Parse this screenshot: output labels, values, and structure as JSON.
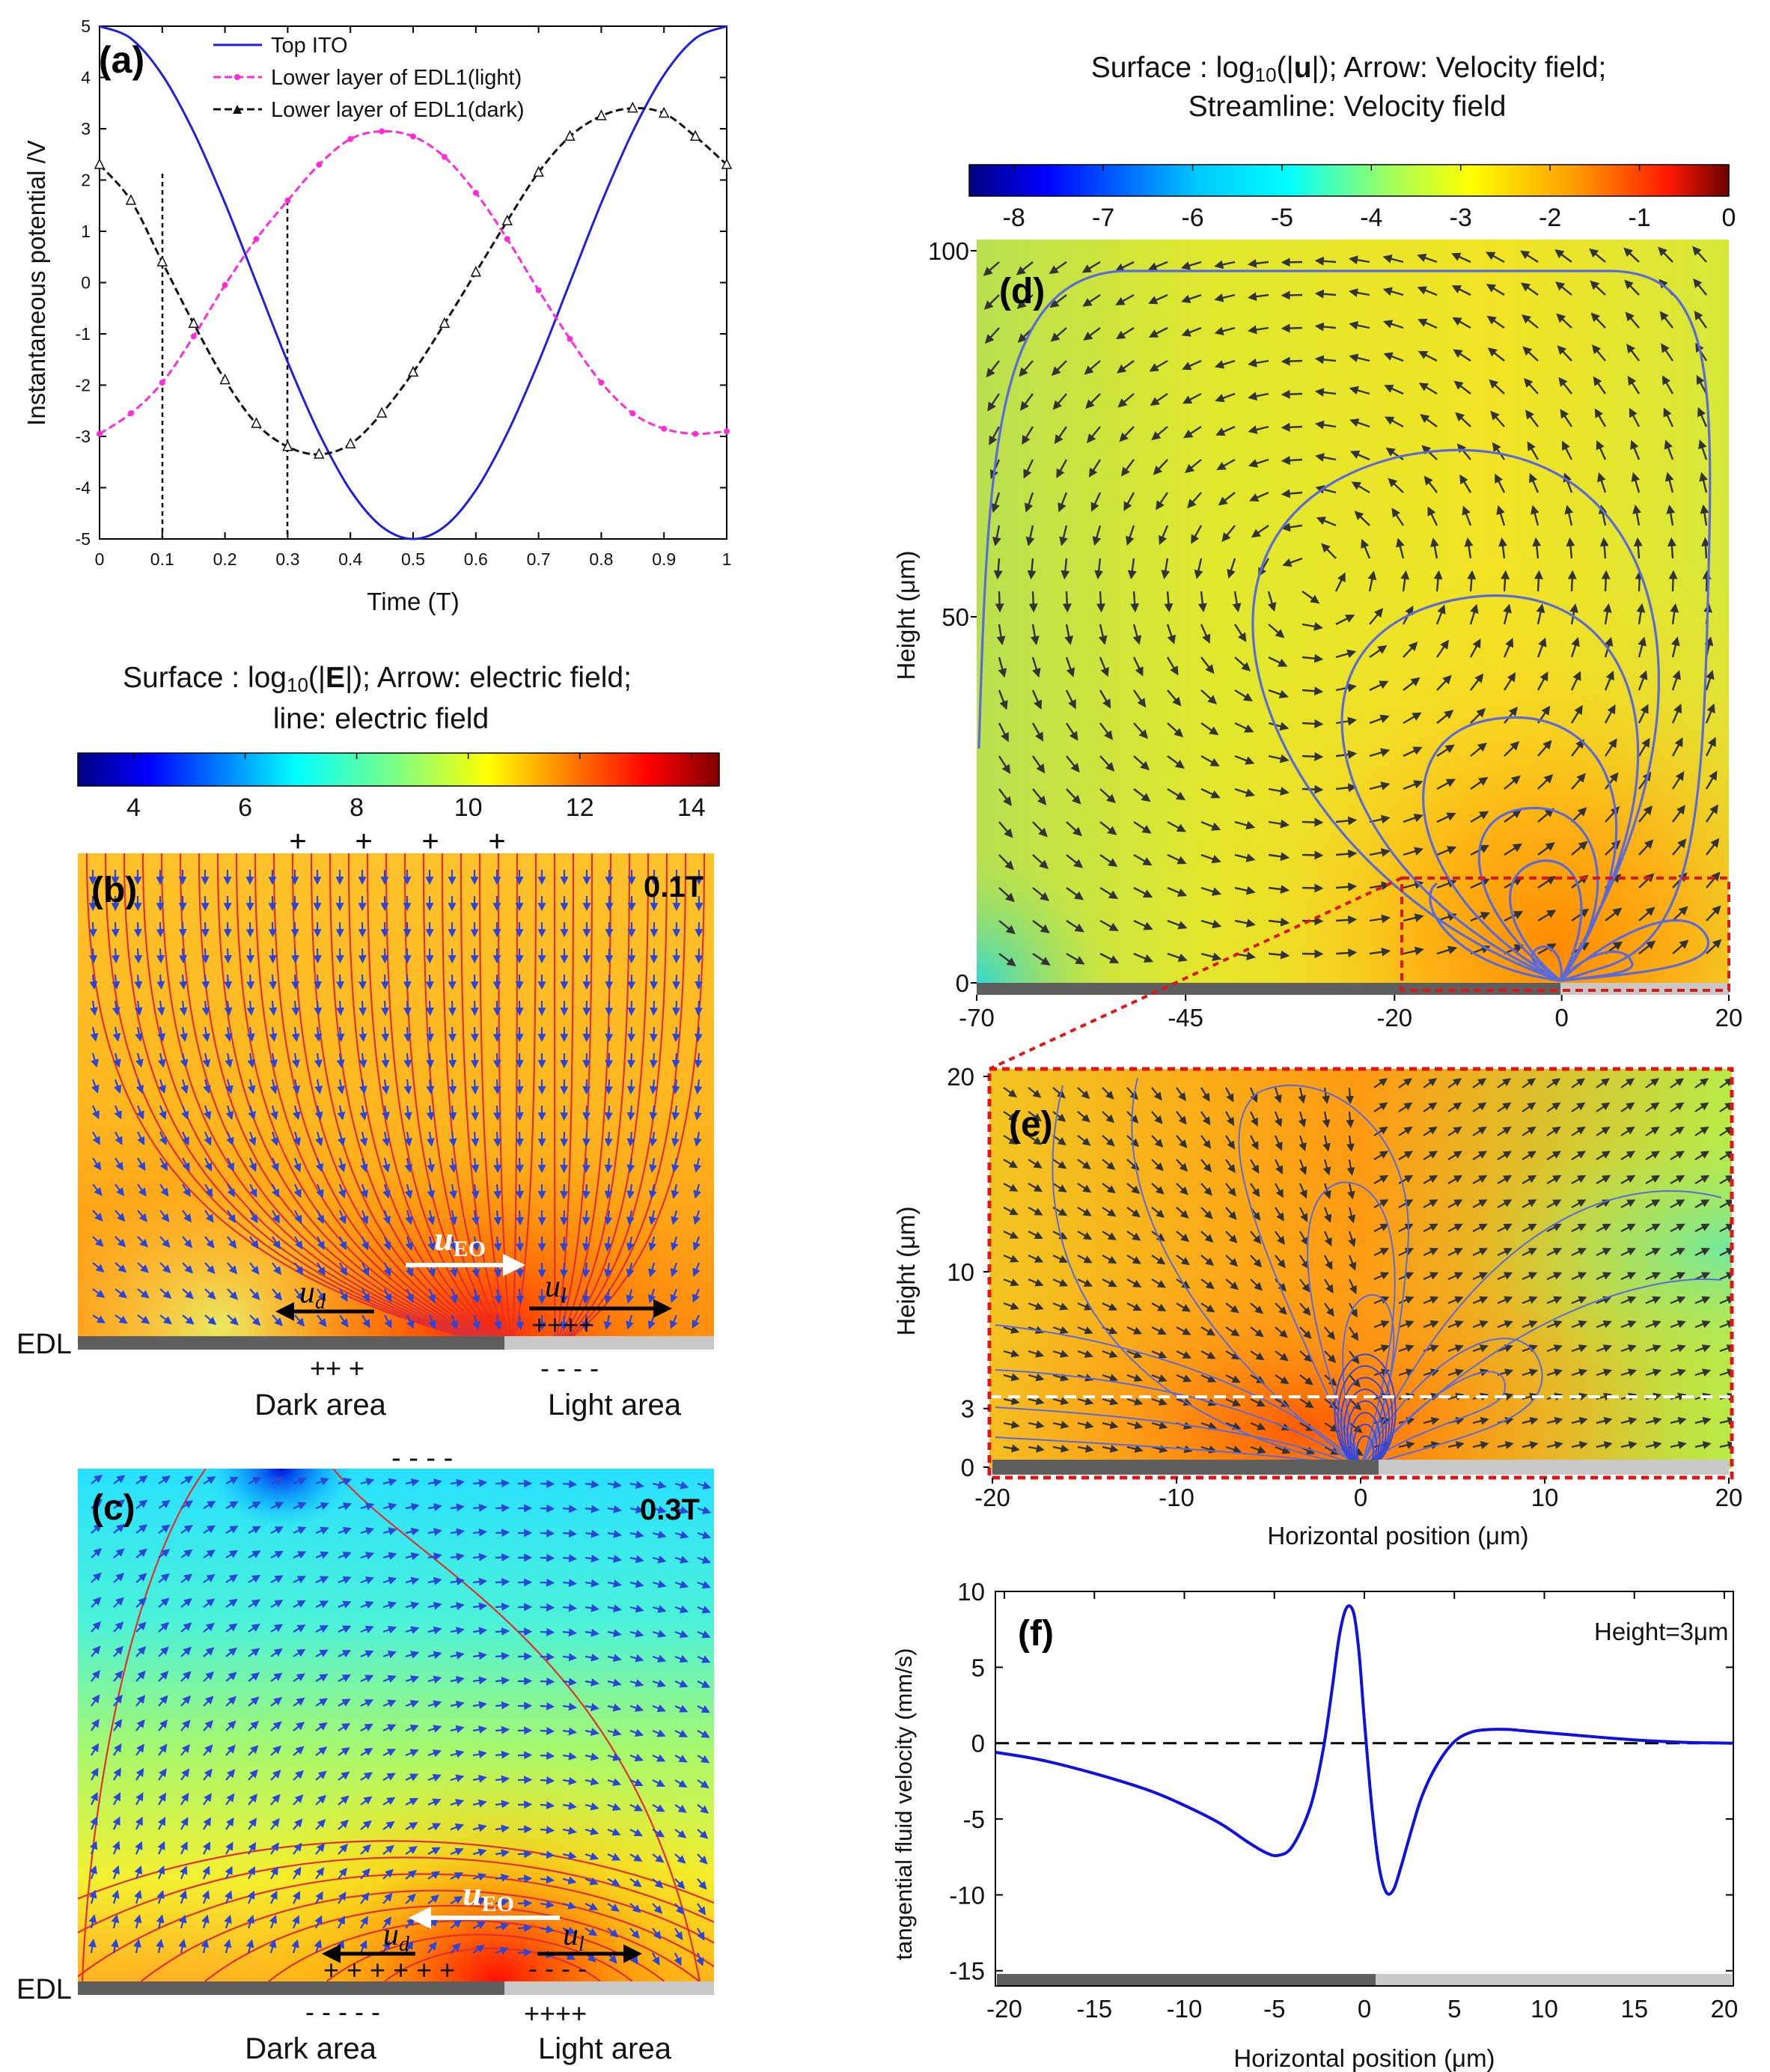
{
  "colors": {
    "top_ito": "#1f1fe0",
    "edl_light": "#ff2bd6",
    "edl_dark": "#111111",
    "field_line_red": "#e03030",
    "arrow_blue": "#2a45d8",
    "streamline": "#5a6ad8",
    "arrow_dark": "#333333",
    "dark_electrode": "#5e5e5e",
    "light_electrode": "#c8c8c8",
    "zoom_box": "#e01515",
    "velocity_curve": "#1010e0"
  },
  "panel_a": {
    "label": "(a)",
    "xlabel": "Time (T)",
    "ylabel": "Instantaneous potential /V",
    "x_ticks": [
      "0",
      "0.1",
      "0.2",
      "0.3",
      "0.4",
      "0.5",
      "0.6",
      "0.7",
      "0.8",
      "0.9",
      "1"
    ],
    "y_ticks": [
      "5",
      "4",
      "3",
      "2",
      "1",
      "0",
      "-1",
      "-2",
      "-3",
      "-4",
      "-5"
    ],
    "legend": [
      "Top ITO",
      "Lower layer of EDL1(light)",
      "Lower layer of EDL1(dark)"
    ]
  },
  "panel_b": {
    "label": "(b)",
    "title_line1_pre": "Surface : log",
    "title_sub": "10",
    "title_line1_open": "(|",
    "title_bold": "E",
    "title_line1_post": "|); Arrow: electric field;",
    "title_line2": "line: electric field",
    "cbar_ticks": [
      "4",
      "6",
      "8",
      "10",
      "12",
      "14"
    ],
    "time": "0.1T",
    "top_charges": [
      "+",
      "+",
      "+",
      "+"
    ],
    "u_eo": "u",
    "u_eo_sub": "EO",
    "u_d": "u",
    "u_d_sub": "d",
    "u_l": "u",
    "u_l_sub": "l",
    "light_surface_charges": "++++",
    "edl": "EDL",
    "dark_charges": "++ +",
    "light_charges": "- - - -",
    "dark_area": "Dark area",
    "light_area": "Light area"
  },
  "panel_c": {
    "label": "(c)",
    "time": "0.3T",
    "top_charges": "- - - -",
    "u_eo": "u",
    "u_eo_sub": "EO",
    "u_d": "u",
    "u_d_sub": "d",
    "u_l": "u",
    "u_l_sub": "l",
    "dark_surface_charges": "+ + + + + +",
    "light_surface_charges": "- - - -",
    "edl": "EDL",
    "dark_charges": "-   -   -   -   -",
    "light_charges": "++++",
    "dark_area": "Dark area",
    "light_area": "Light area"
  },
  "panel_d": {
    "label": "(d)",
    "title_line1_pre": "Surface : log",
    "title_sub": "10",
    "title_line1_open": "(|",
    "title_bold": "u",
    "title_line1_post": "|);  Arrow: Velocity field;",
    "title_line2": "Streamline: Velocity field",
    "cbar_ticks": [
      "-8",
      "-7",
      "-6",
      "-5",
      "-4",
      "-3",
      "-2",
      "-1",
      "0"
    ],
    "ylabel": "Height (μm)",
    "y_ticks": [
      "100",
      "50",
      "0"
    ],
    "x_ticks": [
      "-70",
      "-45",
      "-20",
      "0",
      "20"
    ]
  },
  "panel_e": {
    "label": "(e)",
    "ylabel": "Height (μm)",
    "xlabel": "Horizontal position (μm)",
    "y_ticks": [
      "20",
      "10",
      "3",
      "0"
    ],
    "x_ticks": [
      "-20",
      "-10",
      "0",
      "10",
      "20"
    ]
  },
  "panel_f": {
    "label": "(f)",
    "annotation": "Height=3μm",
    "ylabel": "tangential fluid velocity (mm/s)",
    "xlabel": "Horizontal position (μm)",
    "y_ticks": [
      "10",
      "5",
      "0",
      "-5",
      "-10",
      "-15"
    ],
    "x_ticks": [
      "-20",
      "-15",
      "-10",
      "-5",
      "0",
      "5",
      "10",
      "15",
      "20"
    ]
  },
  "chart_data": [
    {
      "type": "line",
      "panel": "a",
      "title": "",
      "xlabel": "Time (T)",
      "ylabel": "Instantaneous potential /V",
      "xlim": [
        0,
        1
      ],
      "ylim": [
        -5,
        5
      ],
      "reference_lines_x": [
        0.1,
        0.3
      ],
      "series": [
        {
          "name": "Top ITO",
          "x": [
            0,
            0.05,
            0.1,
            0.15,
            0.2,
            0.25,
            0.3,
            0.35,
            0.4,
            0.45,
            0.5,
            0.55,
            0.6,
            0.65,
            0.7,
            0.75,
            0.8,
            0.85,
            0.9,
            0.95,
            1
          ],
          "y": [
            5,
            4.76,
            4.05,
            2.94,
            1.55,
            0,
            -1.55,
            -2.94,
            -4.05,
            -4.76,
            -5,
            -4.76,
            -4.05,
            -2.94,
            -1.55,
            0,
            1.55,
            2.94,
            4.05,
            4.76,
            5
          ]
        },
        {
          "name": "Lower layer of EDL1(light)",
          "x": [
            0,
            0.05,
            0.1,
            0.15,
            0.2,
            0.25,
            0.3,
            0.35,
            0.4,
            0.45,
            0.5,
            0.55,
            0.6,
            0.65,
            0.7,
            0.75,
            0.8,
            0.85,
            0.9,
            0.95,
            1
          ],
          "y": [
            -2.95,
            -2.55,
            -1.95,
            -1.05,
            -0.05,
            0.85,
            1.6,
            2.3,
            2.8,
            2.95,
            2.85,
            2.45,
            1.75,
            0.85,
            -0.15,
            -1.1,
            -1.95,
            -2.55,
            -2.85,
            -2.95,
            -2.9
          ]
        },
        {
          "name": "Lower layer of EDL1(dark)",
          "x": [
            0,
            0.05,
            0.1,
            0.15,
            0.2,
            0.25,
            0.3,
            0.35,
            0.4,
            0.45,
            0.5,
            0.55,
            0.6,
            0.65,
            0.7,
            0.75,
            0.8,
            0.85,
            0.9,
            0.95,
            1
          ],
          "y": [
            2.3,
            1.6,
            0.4,
            -0.8,
            -1.9,
            -2.75,
            -3.2,
            -3.35,
            -3.15,
            -2.55,
            -1.75,
            -0.8,
            0.2,
            1.2,
            2.15,
            2.85,
            3.25,
            3.4,
            3.3,
            2.85,
            2.3
          ]
        }
      ]
    },
    {
      "type": "heatmap",
      "panel": "b",
      "title": "Surface : log10(|E|); Arrow: electric field; line: electric field",
      "colorbar_range": [
        3,
        14.5
      ],
      "colorbar_ticks": [
        4,
        6,
        8,
        10,
        12,
        14
      ]
    },
    {
      "type": "heatmap",
      "panel": "c",
      "title": "Surface : log10(|E|); Arrow: electric field; line: electric field",
      "colorbar_range": [
        3,
        14.5
      ]
    },
    {
      "type": "heatmap",
      "panel": "d",
      "title": "Surface : log10(|u|); Arrow: Velocity field; Streamline: Velocity field",
      "colorbar_range": [
        -8.5,
        0
      ],
      "colorbar_ticks": [
        -8,
        -7,
        -6,
        -5,
        -4,
        -3,
        -2,
        -1,
        0
      ],
      "xlim": [
        -70,
        20
      ],
      "ylim": [
        0,
        100
      ],
      "ylabel": "Height (μm)"
    },
    {
      "type": "heatmap",
      "panel": "e",
      "xlim": [
        -20,
        20
      ],
      "ylim": [
        0,
        20
      ],
      "xlabel": "Horizontal position (μm)",
      "ylabel": "Height (μm)",
      "dashed_line_y": 3
    },
    {
      "type": "line",
      "panel": "f",
      "xlabel": "Horizontal position (μm)",
      "ylabel": "tangential fluid velocity (mm/s)",
      "xlim": [
        -20.5,
        20.5
      ],
      "ylim": [
        -16,
        10
      ],
      "reference_line_y": 0,
      "series": [
        {
          "name": "Height=3μm",
          "x": [
            -20.5,
            -18,
            -15,
            -12,
            -10,
            -8,
            -6.5,
            -5.5,
            -4.8,
            -4,
            -3,
            -2.3,
            -1.8,
            -1.4,
            -1.0,
            -0.6,
            -0.3,
            0,
            0.4,
            0.8,
            1.2,
            1.6,
            2,
            2.6,
            3.2,
            4,
            5,
            6,
            7,
            8,
            9,
            10,
            12,
            14,
            16,
            18,
            20.5
          ],
          "y": [
            -0.6,
            -1.1,
            -2.0,
            -3.1,
            -4.1,
            -5.3,
            -6.5,
            -7.2,
            -7.4,
            -6.8,
            -4.2,
            -0.5,
            3.5,
            7.0,
            8.9,
            8.6,
            6.0,
            1.5,
            -4.0,
            -8.0,
            -9.8,
            -9.7,
            -8.3,
            -5.8,
            -3.5,
            -1.5,
            0.1,
            0.75,
            0.9,
            0.9,
            0.8,
            0.7,
            0.5,
            0.3,
            0.15,
            0.05,
            0
          ]
        }
      ]
    }
  ]
}
